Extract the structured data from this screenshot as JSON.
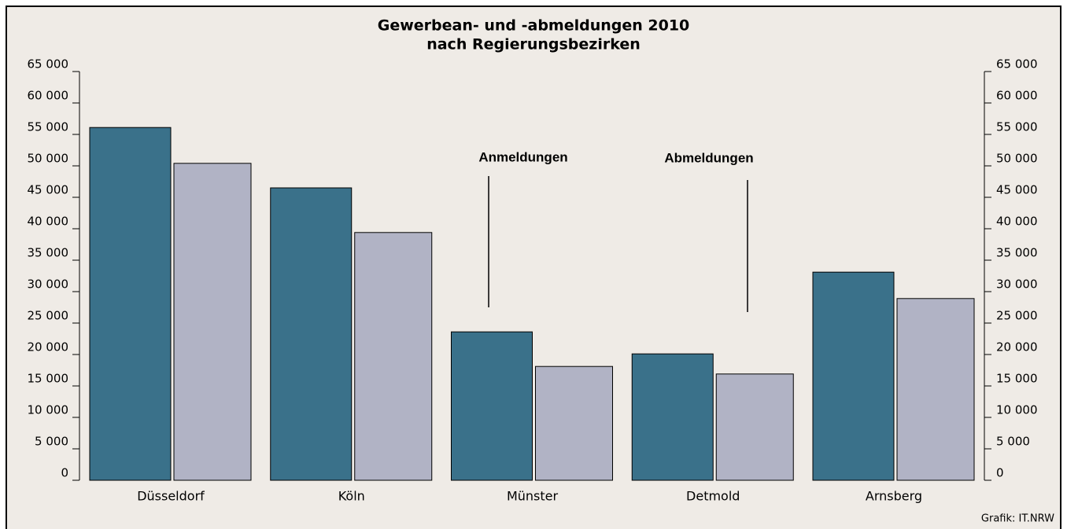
{
  "chart_data": {
    "type": "bar",
    "title": [
      "Gewerbean- und -abmeldungen 2010",
      "nach Regierungsbezirken"
    ],
    "categories": [
      "Düsseldorf",
      "Köln",
      "Münster",
      "Detmold",
      "Arnsberg"
    ],
    "series": [
      {
        "name": "Anmeldungen",
        "color": "#3a718a",
        "values": [
          56100,
          46500,
          23600,
          20100,
          33100
        ]
      },
      {
        "name": "Abmeldungen",
        "color": "#b1b3c5",
        "values": [
          50400,
          39400,
          18100,
          16900,
          28900
        ]
      }
    ],
    "ylim": [
      0,
      65000
    ],
    "yticks": [
      0,
      {
        "value": 5000,
        "label": "5 000"
      },
      {
        "value": 10000,
        "label": "10 000"
      },
      {
        "value": 15000,
        "label": "15 000"
      },
      {
        "value": 20000,
        "label": "20 000"
      },
      {
        "value": 25000,
        "label": "25 000"
      },
      {
        "value": 30000,
        "label": "30 000"
      },
      {
        "value": 35000,
        "label": "35 000"
      },
      {
        "value": 40000,
        "label": "40 000"
      },
      {
        "value": 45000,
        "label": "45 000"
      },
      {
        "value": 50000,
        "label": "50 000"
      },
      {
        "value": 55000,
        "label": "55 000"
      },
      {
        "value": 60000,
        "label": "60 000"
      },
      {
        "value": 65000,
        "label": "65 000"
      }
    ],
    "source": "Grafik: IT.NRW"
  }
}
